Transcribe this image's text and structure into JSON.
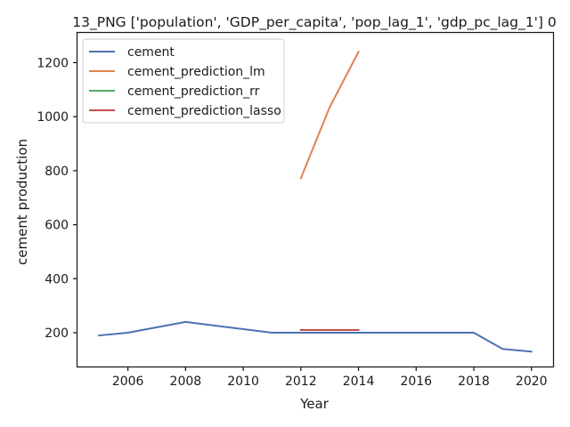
{
  "chart_data": {
    "type": "line",
    "title": "13_PNG ['population', 'GDP_per_capita', 'pop_lag_1', 'gdp_pc_lag_1'] 0",
    "xlabel": "Year",
    "ylabel": "cement production",
    "xlim": [
      2004.25,
      2020.75
    ],
    "ylim": [
      75,
      1310
    ],
    "xticks": [
      2006,
      2008,
      2010,
      2012,
      2014,
      2016,
      2018,
      2020
    ],
    "yticks": [
      200,
      400,
      600,
      800,
      1000,
      1200
    ],
    "grid": false,
    "legend_position": "top-left",
    "series": [
      {
        "name": "cement",
        "color": "#4c72b0",
        "x": [
          2005,
          2006,
          2008,
          2011,
          2012,
          2013,
          2014,
          2015,
          2016,
          2017,
          2018,
          2019,
          2020
        ],
        "y": [
          190,
          200,
          240,
          200,
          200,
          200,
          200,
          200,
          200,
          200,
          200,
          140,
          130
        ]
      },
      {
        "name": "cement_prediction_lm",
        "color": "#dd8452",
        "x": [
          2012,
          2013,
          2014
        ],
        "y": [
          772,
          1035,
          1240
        ]
      },
      {
        "name": "cement_prediction_rr",
        "color": "#55a868",
        "x": [
          2012,
          2013,
          2014
        ],
        "y": [
          210,
          210,
          210
        ]
      },
      {
        "name": "cement_prediction_lasso",
        "color": "#c44e52",
        "x": [
          2012,
          2013,
          2014
        ],
        "y": [
          210,
          210,
          210
        ]
      }
    ]
  }
}
